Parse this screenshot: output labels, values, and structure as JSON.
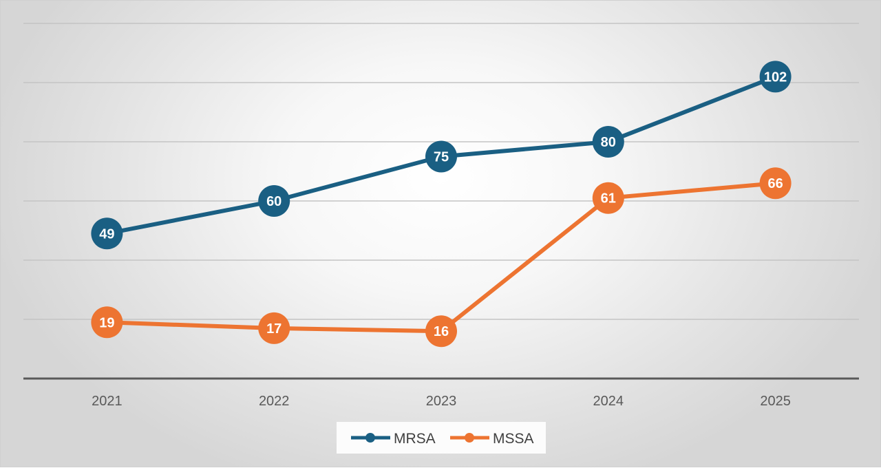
{
  "chart_data": {
    "type": "line",
    "categories": [
      "2021",
      "2022",
      "2023",
      "2024",
      "2025"
    ],
    "series": [
      {
        "name": "MRSA",
        "values": [
          49,
          60,
          75,
          80,
          102
        ],
        "color": "#1a5f83"
      },
      {
        "name": "MSSA",
        "values": [
          19,
          17,
          16,
          61,
          66
        ],
        "color": "#ed7431"
      }
    ],
    "ylim": [
      0,
      120
    ],
    "grid": true,
    "legend_position": "bottom"
  }
}
